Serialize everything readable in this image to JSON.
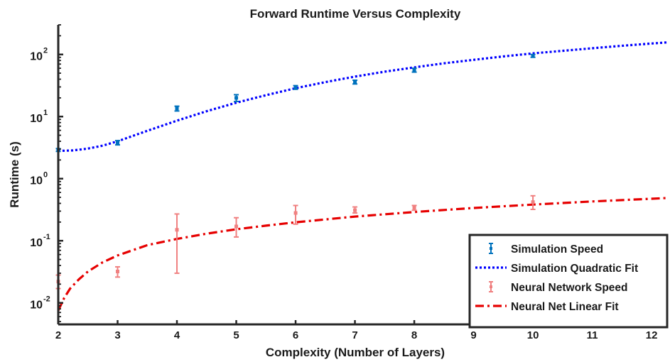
{
  "chart_data": {
    "type": "scatter",
    "title": "Forward Runtime Versus Complexity",
    "xlabel": "Complexity (Number of Layers)",
    "ylabel": "Runtime (s)",
    "xlim": [
      2,
      12.25
    ],
    "ylim": [
      0.0045,
      300
    ],
    "yscale": "log",
    "grid": false,
    "legend_position": "bottom-right",
    "xticks": [
      2,
      3,
      4,
      5,
      6,
      7,
      8,
      9,
      10,
      11,
      12
    ],
    "yticks": [
      {
        "value": 0.01,
        "base": "10",
        "exp": "-2"
      },
      {
        "value": 0.1,
        "base": "10",
        "exp": "-1"
      },
      {
        "value": 1,
        "base": "10",
        "exp": "0"
      },
      {
        "value": 10,
        "base": "10",
        "exp": "1"
      },
      {
        "value": 100,
        "base": "10",
        "exp": "2"
      }
    ],
    "series": [
      {
        "name": "Simulation Speed",
        "kind": "errorbar",
        "color": "#0072bd",
        "points": [
          {
            "x": 2,
            "y": 2.9,
            "lo": 2.75,
            "hi": 3.05
          },
          {
            "x": 3,
            "y": 3.8,
            "lo": 3.5,
            "hi": 4.1
          },
          {
            "x": 4,
            "y": 13.5,
            "lo": 12.3,
            "hi": 14.7
          },
          {
            "x": 5,
            "y": 20,
            "lo": 17.5,
            "hi": 22.5
          },
          {
            "x": 6,
            "y": 29.5,
            "lo": 27.5,
            "hi": 31.5
          },
          {
            "x": 7,
            "y": 36,
            "lo": 33.5,
            "hi": 38.5
          },
          {
            "x": 8,
            "y": 56,
            "lo": 52,
            "hi": 60
          },
          {
            "x": 10,
            "y": 95,
            "lo": 90,
            "hi": 100
          }
        ]
      },
      {
        "name": "Simulation Quadratic Fit",
        "kind": "line",
        "color": "#0000ff",
        "dash": "dotted",
        "x": [
          2,
          2.25,
          2.5,
          2.75,
          3,
          3.5,
          4,
          4.5,
          5,
          5.5,
          6,
          6.5,
          7,
          7.5,
          8,
          8.5,
          9,
          9.5,
          10,
          10.5,
          11,
          11.5,
          12,
          12.25
        ],
        "y": [
          2.8,
          2.85,
          3.05,
          3.4,
          4.0,
          5.9,
          8.6,
          12.2,
          16.7,
          22.1,
          28.6,
          35.9,
          44.0,
          52.8,
          62.0,
          72.0,
          82.0,
          93.0,
          104.0,
          114.5,
          126.0,
          138.0,
          150.0,
          156.0
        ]
      },
      {
        "name": "Neural Network Speed",
        "kind": "errorbar",
        "color": "#f08080",
        "points": [
          {
            "x": 2,
            "y": 0.022,
            "lo": 0.017,
            "hi": 0.028
          },
          {
            "x": 3,
            "y": 0.032,
            "lo": 0.026,
            "hi": 0.038
          },
          {
            "x": 4,
            "y": 0.15,
            "lo": 0.03,
            "hi": 0.27
          },
          {
            "x": 5,
            "y": 0.17,
            "lo": 0.115,
            "hi": 0.235
          },
          {
            "x": 6,
            "y": 0.28,
            "lo": 0.185,
            "hi": 0.37
          },
          {
            "x": 7,
            "y": 0.31,
            "lo": 0.28,
            "hi": 0.35
          },
          {
            "x": 8,
            "y": 0.34,
            "lo": 0.31,
            "hi": 0.37
          },
          {
            "x": 10,
            "y": 0.42,
            "lo": 0.32,
            "hi": 0.53
          }
        ]
      },
      {
        "name": "Neural Net Linear Fit",
        "kind": "line",
        "color": "#e60000",
        "dash": "dashdot",
        "x": [
          2,
          2.05,
          2.1,
          2.2,
          2.35,
          2.5,
          2.75,
          3,
          3.5,
          4,
          4.5,
          5,
          5.5,
          6,
          7,
          8,
          9,
          10,
          11,
          12,
          12.25
        ],
        "y": [
          0.0075,
          0.0095,
          0.012,
          0.017,
          0.024,
          0.032,
          0.045,
          0.058,
          0.085,
          0.107,
          0.13,
          0.153,
          0.175,
          0.198,
          0.245,
          0.29,
          0.337,
          0.383,
          0.43,
          0.475,
          0.487
        ]
      }
    ]
  }
}
